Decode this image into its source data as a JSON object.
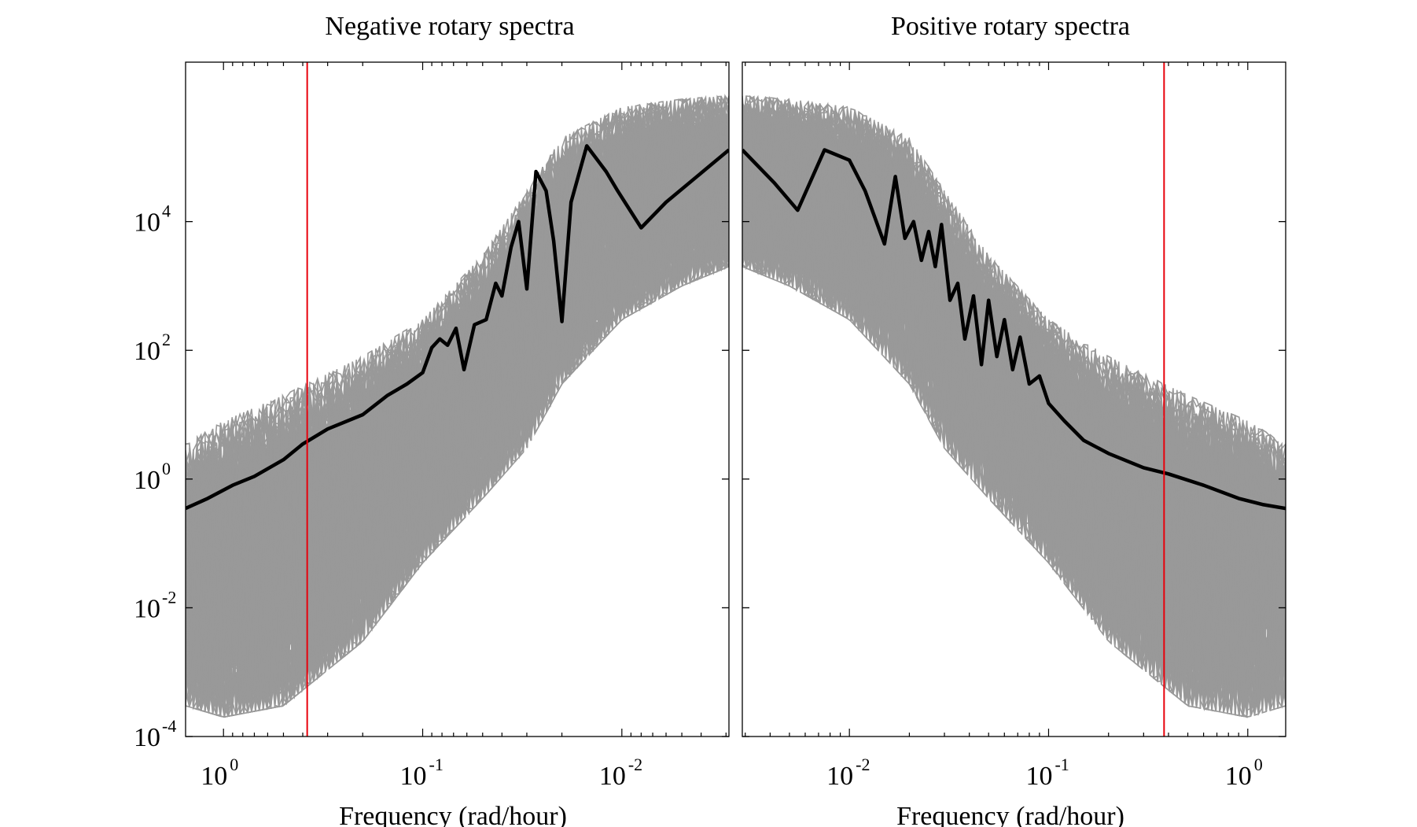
{
  "chart_data": [
    {
      "type": "line",
      "title": "Negative rotary spectra",
      "xlabel": "Frequency (rad/hour)",
      "ylabel": "",
      "xscale": "log",
      "yscale": "log",
      "x_axis_reversed": true,
      "xlim": [
        1.55,
        0.0029
      ],
      "ylim": [
        0.0001,
        3000000
      ],
      "x_ticks": [
        {
          "value": 1,
          "base": "10",
          "exp": "0"
        },
        {
          "value": 0.1,
          "base": "10",
          "exp": "-1"
        },
        {
          "value": 0.01,
          "base": "10",
          "exp": "-2"
        }
      ],
      "y_ticks": [
        {
          "value": 0.0001,
          "base": "10",
          "exp": "-4"
        },
        {
          "value": 0.01,
          "base": "10",
          "exp": "-2"
        },
        {
          "value": 1,
          "base": "10",
          "exp": "0"
        },
        {
          "value": 100,
          "base": "10",
          "exp": "2"
        },
        {
          "value": 10000,
          "base": "10",
          "exp": "4"
        }
      ],
      "reference_line": {
        "x": 0.38,
        "color": "#e8000b"
      },
      "ensemble_color": "#999999",
      "ensemble_envelope": {
        "x": [
          1.55,
          1.0,
          0.5,
          0.2,
          0.1,
          0.05,
          0.03,
          0.02,
          0.01,
          0.005,
          0.0029
        ],
        "upper": [
          3.5,
          8,
          20,
          80,
          300,
          3000,
          30000,
          200000,
          600000,
          800000,
          900000
        ],
        "lower": [
          0.0003,
          0.0002,
          0.0003,
          0.003,
          0.05,
          0.5,
          3,
          30,
          300,
          1000,
          2000
        ]
      },
      "series": [
        {
          "color": "#000000",
          "x": [
            1.55,
            1.2,
            0.9,
            0.7,
            0.5,
            0.4,
            0.3,
            0.2,
            0.15,
            0.12,
            0.1,
            0.09,
            0.082,
            0.075,
            0.068,
            0.062,
            0.055,
            0.048,
            0.043,
            0.04,
            0.036,
            0.033,
            0.03,
            0.027,
            0.024,
            0.022,
            0.02,
            0.018,
            0.015,
            0.012,
            0.0105,
            0.008,
            0.006,
            0.0029
          ],
          "values": [
            0.35,
            0.5,
            0.8,
            1.1,
            2,
            3.5,
            6,
            10,
            20,
            30,
            45,
            110,
            150,
            120,
            220,
            50,
            250,
            300,
            1100,
            700,
            4000,
            10000,
            900,
            60000,
            30000,
            5000,
            280,
            20000,
            150000,
            60000,
            30000,
            8000,
            20000,
            130000
          ]
        }
      ]
    },
    {
      "type": "line",
      "title": "Positive rotary spectra",
      "xlabel": "Frequency (rad/hour)",
      "ylabel": "",
      "xscale": "log",
      "yscale": "log",
      "xlim": [
        0.0029,
        1.55
      ],
      "ylim": [
        0.0001,
        3000000
      ],
      "x_ticks": [
        {
          "value": 0.01,
          "base": "10",
          "exp": "-2"
        },
        {
          "value": 0.1,
          "base": "10",
          "exp": "-1"
        },
        {
          "value": 1,
          "base": "10",
          "exp": "0"
        }
      ],
      "reference_line": {
        "x": 0.38,
        "color": "#e8000b"
      },
      "ensemble_color": "#999999",
      "ensemble_envelope": {
        "x": [
          0.0029,
          0.005,
          0.01,
          0.02,
          0.03,
          0.05,
          0.1,
          0.2,
          0.5,
          1.0,
          1.55
        ],
        "upper": [
          900000,
          800000,
          600000,
          200000,
          30000,
          3000,
          300,
          80,
          20,
          8,
          3.5
        ],
        "lower": [
          2000,
          1000,
          300,
          30,
          3,
          0.5,
          0.05,
          0.003,
          0.0003,
          0.0002,
          0.0003
        ]
      },
      "series": [
        {
          "color": "#000000",
          "x": [
            0.0029,
            0.0042,
            0.0055,
            0.0075,
            0.01,
            0.012,
            0.015,
            0.017,
            0.019,
            0.021,
            0.023,
            0.025,
            0.027,
            0.029,
            0.032,
            0.035,
            0.038,
            0.042,
            0.046,
            0.05,
            0.055,
            0.06,
            0.066,
            0.072,
            0.08,
            0.09,
            0.1,
            0.12,
            0.15,
            0.2,
            0.3,
            0.4,
            0.6,
            0.9,
            1.2,
            1.55
          ],
          "values": [
            130000,
            40000,
            15000,
            130000,
            90000,
            30000,
            4500,
            50000,
            5500,
            10000,
            2500,
            7000,
            2000,
            9000,
            600,
            1100,
            150,
            700,
            60,
            600,
            80,
            300,
            50,
            160,
            30,
            40,
            15,
            8,
            4,
            2.5,
            1.5,
            1.2,
            0.8,
            0.5,
            0.4,
            0.35
          ]
        }
      ]
    }
  ]
}
